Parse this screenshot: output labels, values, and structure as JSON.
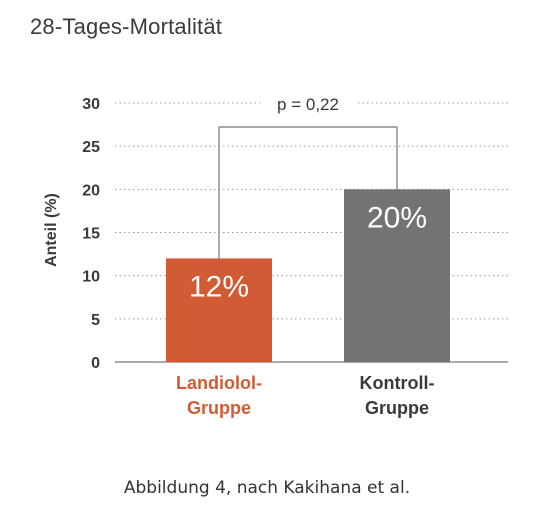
{
  "chart_data": {
    "type": "bar",
    "title": "28-Tages-Mortalität",
    "ylabel": "Anteil (%)",
    "xlabel": "",
    "ylim": [
      0,
      30
    ],
    "yticks": [
      0,
      5,
      10,
      15,
      20,
      25,
      30
    ],
    "grid": true,
    "categories": [
      [
        "Landiolol-",
        "Gruppe"
      ],
      [
        "Kontroll-",
        "Gruppe"
      ]
    ],
    "values": [
      12,
      20
    ],
    "value_labels": [
      "12%",
      "20%"
    ],
    "colors": [
      "#d15b34",
      "#737373"
    ],
    "category_label_colors": [
      "#d15b34",
      "#3a3a3a"
    ],
    "annotation": "p = 0,22"
  },
  "caption": "Abbildung 4, nach Kakihana et al."
}
